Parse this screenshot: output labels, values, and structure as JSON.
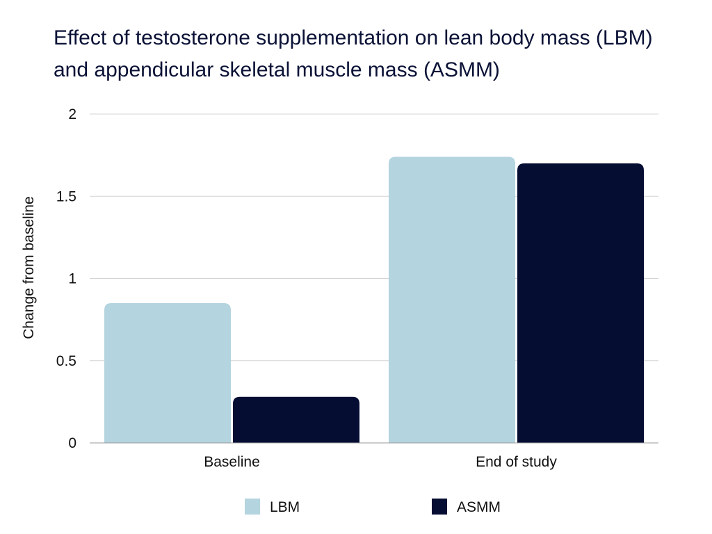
{
  "chart_data": {
    "type": "bar",
    "title": "Effect of testosterone supplementation on lean body mass (LBM) and appendicular skeletal muscle mass (ASMM)",
    "xlabel": "",
    "ylabel": "Change from baseline",
    "categories": [
      "Baseline",
      "End of study"
    ],
    "series": [
      {
        "name": "LBM",
        "values": [
          0.85,
          1.74
        ],
        "color": "#b4d4df"
      },
      {
        "name": "ASMM",
        "values": [
          0.28,
          1.7
        ],
        "color": "#060d33"
      }
    ],
    "ylim": [
      0,
      2
    ],
    "yticks": [
      "0",
      "0.5",
      "1",
      "1.5",
      "2"
    ],
    "grid": true,
    "legend_position": "bottom"
  }
}
